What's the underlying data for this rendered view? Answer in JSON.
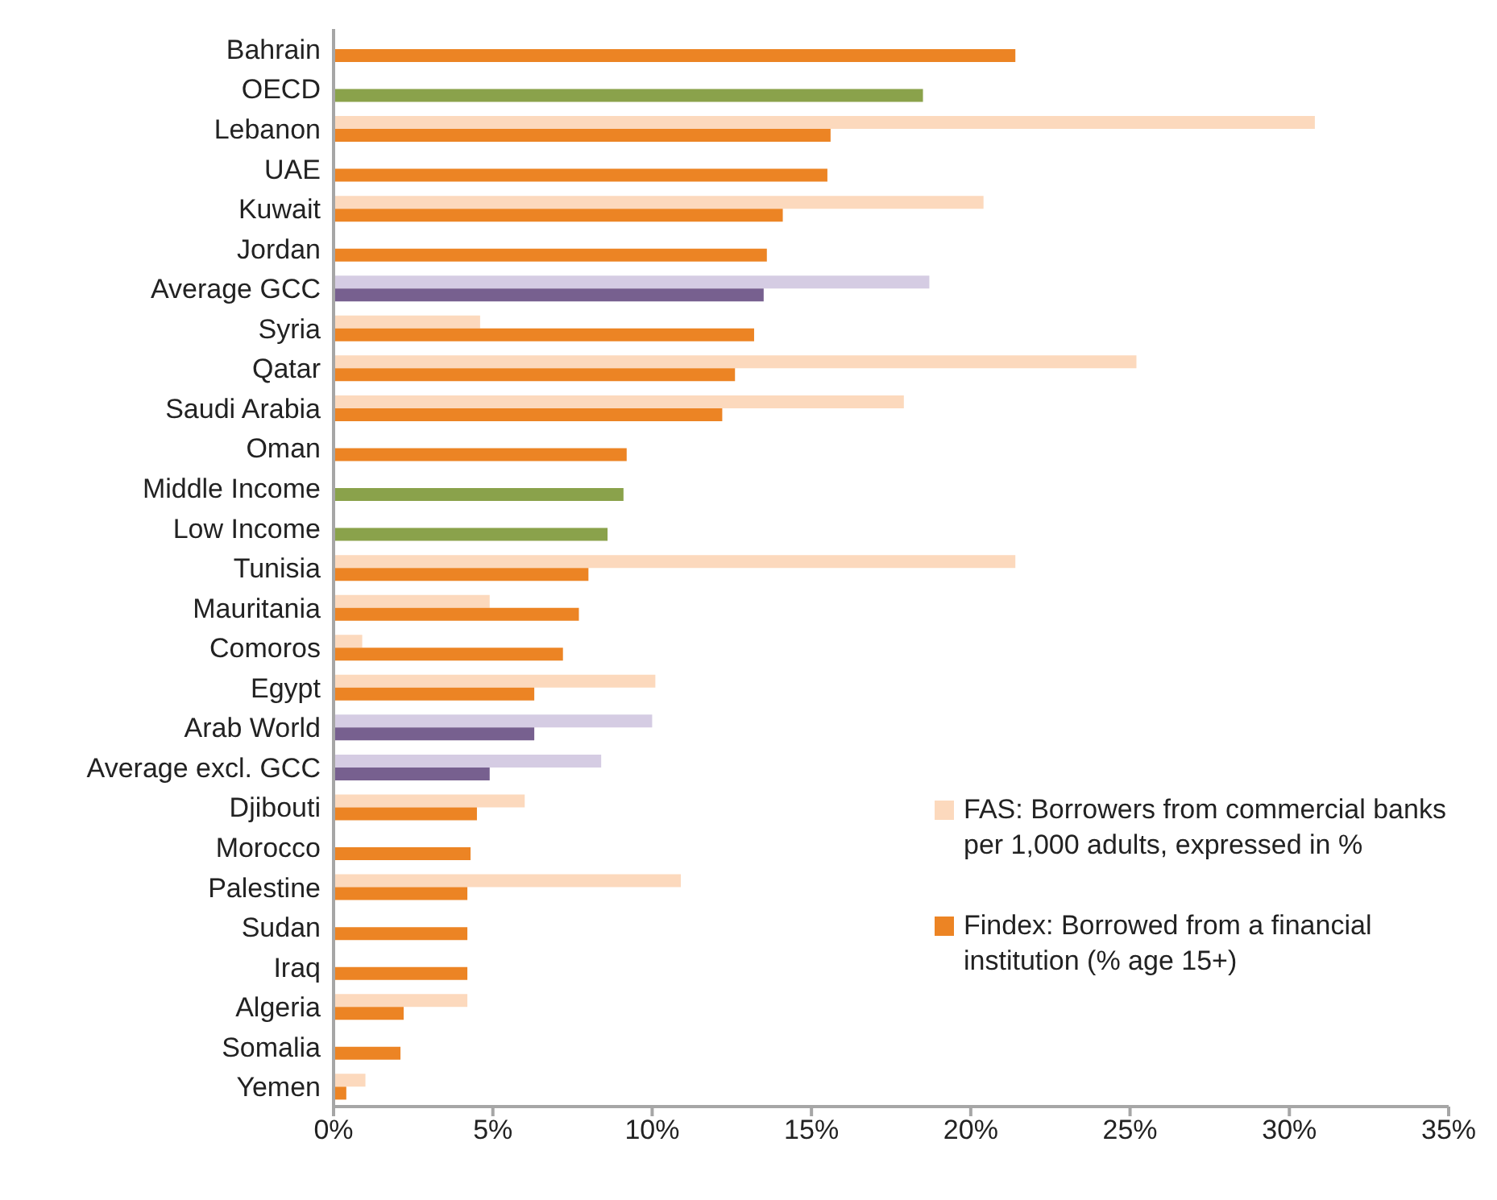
{
  "chart_data": {
    "type": "bar",
    "orientation": "horizontal",
    "categories": [
      "Bahrain",
      "OECD",
      "Lebanon",
      "UAE",
      "Kuwait",
      "Jordan",
      "Average GCC",
      "Syria",
      "Qatar",
      "Saudi Arabia",
      "Oman",
      "Middle Income",
      "Low Income",
      "Tunisia",
      "Mauritania",
      "Comoros",
      "Egypt",
      "Arab World",
      "Average excl. GCC",
      "Djibouti",
      "Morocco",
      "Palestine",
      "Sudan",
      "Iraq",
      "Algeria",
      "Somalia",
      "Yemen"
    ],
    "series": [
      {
        "name": "FAS: Borrowers from commercial banks per 1,000 adults, expressed in %",
        "color": "#fcd9bd",
        "colors": [
          "#fcd9bd",
          "#fcd9bd",
          "#fcd9bd",
          "#fcd9bd",
          "#fcd9bd",
          "#fcd9bd",
          "#d5cce3",
          "#fcd9bd",
          "#fcd9bd",
          "#fcd9bd",
          "#fcd9bd",
          "#fcd9bd",
          "#fcd9bd",
          "#fcd9bd",
          "#fcd9bd",
          "#fcd9bd",
          "#fcd9bd",
          "#d5cce3",
          "#d5cce3",
          "#fcd9bd",
          "#fcd9bd",
          "#fcd9bd",
          "#fcd9bd",
          "#fcd9bd",
          "#fcd9bd",
          "#fcd9bd",
          "#fcd9bd"
        ],
        "values": [
          null,
          null,
          30.8,
          null,
          20.4,
          null,
          18.7,
          4.6,
          25.2,
          17.9,
          null,
          null,
          null,
          21.4,
          4.9,
          0.9,
          10.1,
          10.0,
          8.4,
          6.0,
          null,
          10.9,
          null,
          null,
          4.2,
          null,
          1.0
        ]
      },
      {
        "name": "Findex: Borrowed from a financial institution (% age 15+)",
        "color": "#ec8424",
        "colors": [
          "#ec8424",
          "#8aa24b",
          "#ec8424",
          "#ec8424",
          "#ec8424",
          "#ec8424",
          "#77608f",
          "#ec8424",
          "#ec8424",
          "#ec8424",
          "#ec8424",
          "#8aa24b",
          "#8aa24b",
          "#ec8424",
          "#ec8424",
          "#ec8424",
          "#ec8424",
          "#77608f",
          "#77608f",
          "#ec8424",
          "#ec8424",
          "#ec8424",
          "#ec8424",
          "#ec8424",
          "#ec8424",
          "#ec8424",
          "#ec8424"
        ],
        "values": [
          21.4,
          18.5,
          15.6,
          15.5,
          14.1,
          13.6,
          13.5,
          13.2,
          12.6,
          12.2,
          9.2,
          9.1,
          8.6,
          8.0,
          7.7,
          7.2,
          6.3,
          6.3,
          4.9,
          4.5,
          4.3,
          4.2,
          4.2,
          4.2,
          2.2,
          2.1,
          0.4
        ]
      }
    ],
    "xlim": [
      0,
      35
    ],
    "xticks": [
      {
        "value": 0,
        "label": "0%"
      },
      {
        "value": 5,
        "label": "5%"
      },
      {
        "value": 10,
        "label": "10%"
      },
      {
        "value": 15,
        "label": "15%"
      },
      {
        "value": 20,
        "label": "20%"
      },
      {
        "value": 25,
        "label": "25%"
      },
      {
        "value": 30,
        "label": "30%"
      },
      {
        "value": 35,
        "label": "35%"
      }
    ],
    "grid": false,
    "legend": "bottom right"
  }
}
